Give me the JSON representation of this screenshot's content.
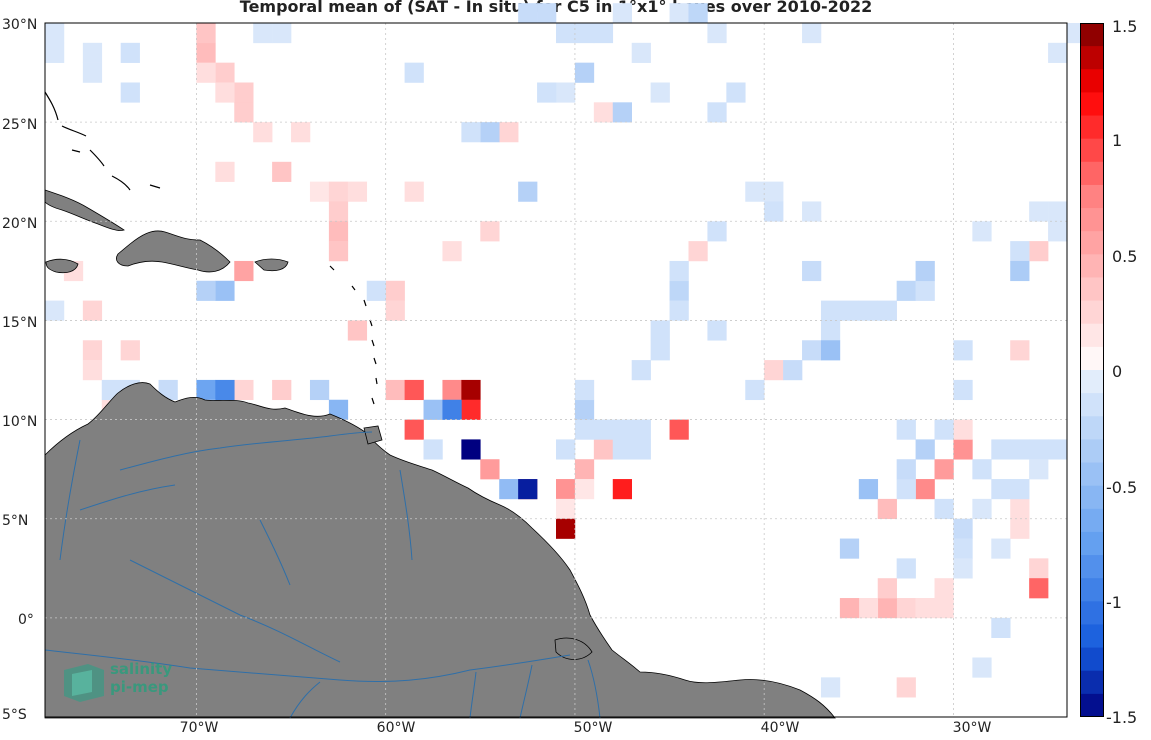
{
  "title": "Temporal mean of (SAT - In situ) for C5 in 1°x1° boxes over 2010-2022",
  "lat_labels": [
    "30°N",
    "25°N",
    "20°N",
    "15°N",
    "10°N",
    "5°N",
    "0°",
    "5°S"
  ],
  "lon_labels": [
    "70°W",
    "60°W",
    "50°W",
    "40°W",
    "30°W"
  ],
  "colorbar": {
    "ticks": [
      "1.5",
      "1",
      "0.5",
      "0",
      "-0.5",
      "-1",
      "-1.5"
    ],
    "range": [
      -1.5,
      1.5
    ],
    "colors": {
      "max": "#7a0000",
      "high": "#ff0000",
      "mid_high": "#ffb3b3",
      "zero": "#ffffff",
      "mid_low": "#b8d4f5",
      "low": "#1a66e0",
      "min": "#000080"
    }
  },
  "land_color": "#808080",
  "river_color": "#2f6fa8",
  "logo": {
    "line1": "salinity",
    "line2": "pi-mep"
  },
  "chart_data": {
    "type": "heatmap",
    "title": "Temporal mean of (SAT - In situ) for C5 in 1°x1° boxes over 2010-2022",
    "x_range": [
      -78,
      -24
    ],
    "y_range": [
      -5,
      30
    ],
    "cells": [
      [
        -70,
        29,
        0.4
      ],
      [
        -69,
        28,
        0.3
      ],
      [
        -70,
        28,
        0.2
      ],
      [
        -68,
        27,
        0.3
      ],
      [
        -69,
        27,
        0.2
      ],
      [
        -68,
        26,
        0.3
      ],
      [
        -67,
        25,
        0.2
      ],
      [
        -65,
        25,
        0.2
      ],
      [
        -69,
        23,
        0.2
      ],
      [
        -66,
        23,
        0.35
      ],
      [
        -64,
        22,
        0.15
      ],
      [
        -63,
        22,
        0.25
      ],
      [
        -62,
        22,
        0.2
      ],
      [
        -59,
        22,
        0.2
      ],
      [
        -63,
        21,
        0.3
      ],
      [
        -63,
        20,
        0.4
      ],
      [
        -63,
        19,
        0.35
      ],
      [
        -57,
        19,
        0.2
      ],
      [
        -55,
        20,
        0.25
      ],
      [
        -68,
        18,
        0.55
      ],
      [
        -77,
        18,
        0.2
      ],
      [
        -76,
        16,
        0.25
      ],
      [
        -60,
        17,
        0.3
      ],
      [
        -60,
        16,
        0.25
      ],
      [
        -62,
        15,
        0.35
      ],
      [
        -76,
        14,
        0.25
      ],
      [
        -76,
        13,
        0.2
      ],
      [
        -74,
        14,
        0.25
      ],
      [
        -68,
        12,
        0.25
      ],
      [
        -66,
        12,
        0.3
      ],
      [
        -60,
        12,
        0.4
      ],
      [
        -59,
        12,
        0.9
      ],
      [
        -57,
        12,
        0.7
      ],
      [
        -56,
        12,
        1.4
      ],
      [
        -56,
        11,
        1.05
      ],
      [
        -59,
        10,
        0.9
      ],
      [
        -75,
        11,
        0.2
      ],
      [
        -55,
        8,
        0.6
      ],
      [
        -53,
        7,
        0.85
      ],
      [
        -51,
        7,
        0.65
      ],
      [
        -51,
        6,
        0.15
      ],
      [
        -51,
        5,
        1.4
      ],
      [
        -50,
        8,
        0.45
      ],
      [
        -50,
        7,
        0.15
      ],
      [
        -49,
        9,
        0.35
      ],
      [
        -48,
        7,
        1.1
      ],
      [
        -45,
        10,
        0.9
      ],
      [
        -40,
        13,
        0.25
      ],
      [
        -33,
        1,
        0.25
      ],
      [
        -34,
        1,
        0.45
      ],
      [
        -34,
        2,
        0.3
      ],
      [
        -35,
        1,
        0.2
      ],
      [
        -36,
        1,
        0.45
      ],
      [
        -34,
        6,
        0.4
      ],
      [
        -32,
        7,
        0.7
      ],
      [
        -31,
        8,
        0.6
      ],
      [
        -30,
        9,
        0.65
      ],
      [
        -30,
        10,
        0.2
      ],
      [
        -27,
        6,
        0.2
      ],
      [
        -27,
        5,
        0.2
      ],
      [
        -26,
        3,
        0.25
      ],
      [
        -26,
        2,
        0.85
      ],
      [
        -31,
        1,
        0.2
      ],
      [
        -32,
        1,
        0.2
      ],
      [
        -31,
        2,
        0.2
      ],
      [
        -33,
        -3,
        0.25
      ],
      [
        -27,
        14,
        0.25
      ],
      [
        -26,
        19,
        0.3
      ],
      [
        -44,
        19,
        0.25
      ],
      [
        -49,
        26,
        0.2
      ],
      [
        -54,
        25,
        0.25
      ],
      [
        -70,
        30,
        0.35
      ],
      [
        -70,
        12,
        -0.7
      ],
      [
        -69,
        12,
        -0.9
      ],
      [
        -70,
        11,
        -0.3
      ],
      [
        -69,
        17,
        -0.45
      ],
      [
        -70,
        17,
        -0.3
      ],
      [
        -64,
        12,
        -0.3
      ],
      [
        -63,
        11,
        -0.55
      ],
      [
        -58,
        11,
        -0.45
      ],
      [
        -57,
        11,
        -0.95
      ],
      [
        -56,
        9,
        -1.5
      ],
      [
        -54,
        7,
        -0.5
      ],
      [
        -53,
        7,
        -1.4
      ],
      [
        -50,
        11,
        -0.3
      ],
      [
        -50,
        12,
        -0.15
      ],
      [
        -50,
        10,
        -0.15
      ],
      [
        -49,
        10,
        -0.15
      ],
      [
        -48,
        10,
        -0.15
      ],
      [
        -47,
        10,
        -0.15
      ],
      [
        -47,
        9,
        -0.15
      ],
      [
        -48,
        9,
        -0.15
      ],
      [
        -51,
        9,
        -0.15
      ],
      [
        -58,
        9,
        -0.15
      ],
      [
        -61,
        17,
        -0.15
      ],
      [
        -55,
        25,
        -0.3
      ],
      [
        -56,
        25,
        -0.15
      ],
      [
        -53,
        22,
        -0.3
      ],
      [
        -78,
        30,
        -0.1
      ],
      [
        -76,
        29,
        -0.1
      ],
      [
        -74,
        29,
        -0.15
      ],
      [
        -76,
        28,
        -0.1
      ],
      [
        -74,
        27,
        -0.15
      ],
      [
        -78,
        16,
        -0.1
      ],
      [
        -67,
        30,
        -0.1
      ],
      [
        -66,
        30,
        -0.1
      ],
      [
        -59,
        28,
        -0.15
      ],
      [
        -53,
        31,
        -0.2
      ],
      [
        -52,
        31,
        -0.2
      ],
      [
        -51,
        30,
        -0.15
      ],
      [
        -50,
        30,
        -0.15
      ],
      [
        -49,
        30,
        -0.15
      ],
      [
        -51,
        27,
        -0.1
      ],
      [
        -50,
        28,
        -0.3
      ],
      [
        -48,
        26,
        -0.3
      ],
      [
        -47,
        29,
        -0.1
      ],
      [
        -46,
        27,
        -0.1
      ],
      [
        -45,
        31,
        -0.1
      ],
      [
        -44,
        31,
        -0.25
      ],
      [
        -43,
        30,
        -0.1
      ],
      [
        -42,
        27,
        -0.15
      ],
      [
        -43,
        26,
        -0.15
      ],
      [
        -48,
        31,
        -0.1
      ],
      [
        -52,
        27,
        -0.15
      ],
      [
        -41,
        22,
        -0.1
      ],
      [
        -40,
        22,
        -0.1
      ],
      [
        -40,
        21,
        -0.15
      ],
      [
        -38,
        21,
        -0.1
      ],
      [
        -43,
        20,
        -0.15
      ],
      [
        -38,
        30,
        -0.1
      ],
      [
        -29,
        20,
        -0.1
      ],
      [
        -26,
        21,
        -0.1
      ],
      [
        -25,
        21,
        -0.1
      ],
      [
        -25,
        20,
        -0.1
      ],
      [
        -27,
        19,
        -0.15
      ],
      [
        -27,
        18,
        -0.35
      ],
      [
        -38,
        18,
        -0.2
      ],
      [
        -45,
        17,
        -0.25
      ],
      [
        -45,
        18,
        -0.15
      ],
      [
        -45,
        16,
        -0.15
      ],
      [
        -46,
        15,
        -0.15
      ],
      [
        -46,
        14,
        -0.15
      ],
      [
        -47,
        13,
        -0.15
      ],
      [
        -43,
        15,
        -0.15
      ],
      [
        -37,
        16,
        -0.15
      ],
      [
        -36,
        16,
        -0.15
      ],
      [
        -35,
        16,
        -0.15
      ],
      [
        -34,
        16,
        -0.15
      ],
      [
        -37,
        15,
        -0.15
      ],
      [
        -38,
        14,
        -0.2
      ],
      [
        -37,
        14,
        -0.45
      ],
      [
        -39,
        13,
        -0.2
      ],
      [
        -41,
        12,
        -0.15
      ],
      [
        -30,
        12,
        -0.15
      ],
      [
        -33,
        17,
        -0.25
      ],
      [
        -32,
        17,
        -0.15
      ],
      [
        -32,
        18,
        -0.3
      ],
      [
        -30,
        14,
        -0.15
      ],
      [
        -29,
        8,
        -0.15
      ],
      [
        -28,
        9,
        -0.15
      ],
      [
        -27,
        9,
        -0.15
      ],
      [
        -26,
        9,
        -0.15
      ],
      [
        -25,
        9,
        -0.15
      ],
      [
        -28,
        7,
        -0.15
      ],
      [
        -27,
        7,
        -0.15
      ],
      [
        -26,
        8,
        -0.1
      ],
      [
        -29,
        6,
        -0.1
      ],
      [
        -30,
        5,
        -0.2
      ],
      [
        -31,
        6,
        -0.15
      ],
      [
        -33,
        10,
        -0.15
      ],
      [
        -33,
        7,
        -0.15
      ],
      [
        -31,
        10,
        -0.15
      ],
      [
        -32,
        9,
        -0.3
      ],
      [
        -33,
        8,
        -0.2
      ],
      [
        -35,
        7,
        -0.45
      ],
      [
        -36,
        4,
        -0.3
      ],
      [
        -33,
        3,
        -0.15
      ],
      [
        -30,
        4,
        -0.15
      ],
      [
        -30,
        3,
        -0.1
      ],
      [
        -28,
        4,
        -0.1
      ],
      [
        -28,
        0,
        -0.15
      ],
      [
        -29,
        -2,
        -0.1
      ],
      [
        -37,
        -3,
        -0.1
      ],
      [
        -24,
        30,
        -0.1
      ],
      [
        -25,
        29,
        -0.1
      ],
      [
        -74,
        12,
        -0.15
      ],
      [
        -75,
        12,
        -0.15
      ],
      [
        -72,
        12,
        -0.2
      ],
      [
        -78,
        29,
        -0.1
      ]
    ]
  }
}
